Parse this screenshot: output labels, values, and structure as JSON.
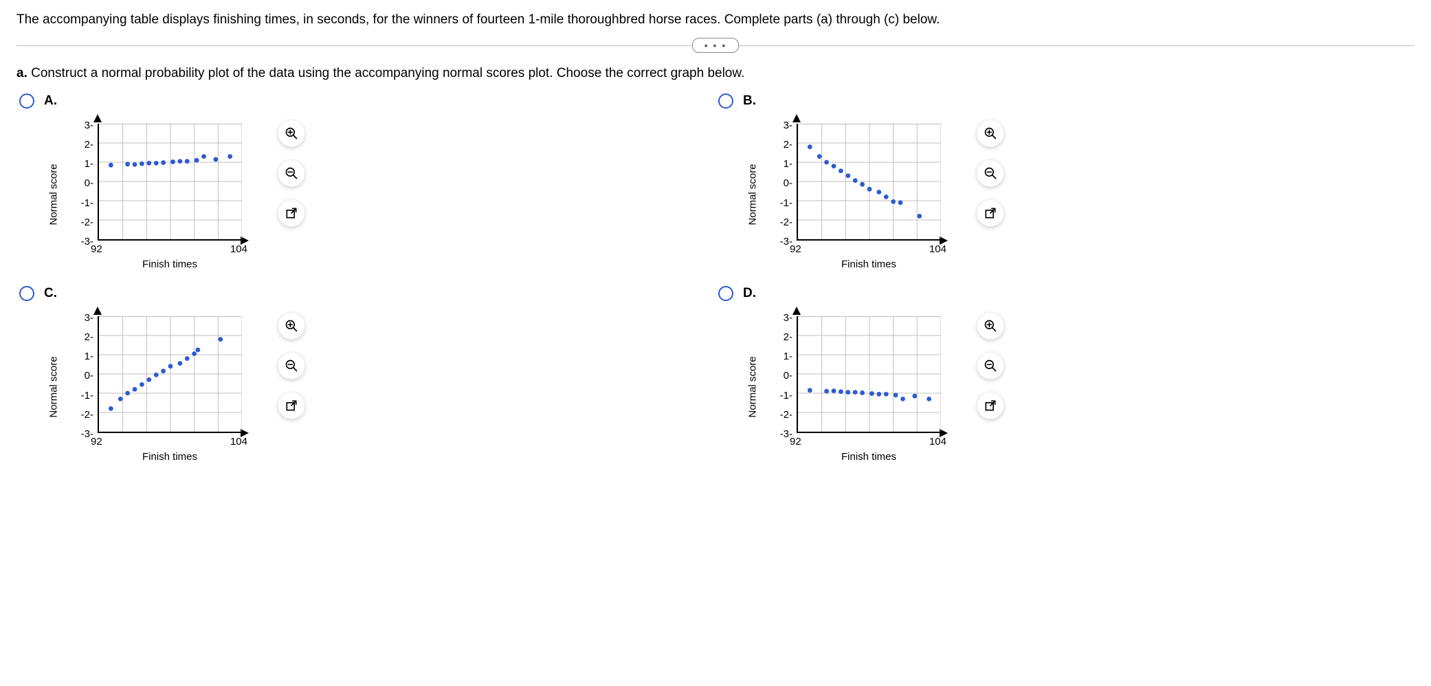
{
  "intro": "The accompanying table displays finishing times, in seconds, for the winners of fourteen 1-mile thoroughbred horse races. Complete parts (a) through (c) below.",
  "pill": "• • •",
  "partA": {
    "letter": "a.",
    "prompt": "Construct a normal probability plot of the data using the accompanying normal scores plot. Choose the correct graph below."
  },
  "axisCommon": {
    "ylabel": "Normal score",
    "xlabel": "Finish times",
    "yticks": [
      "3",
      "2",
      "1",
      "0",
      "-1",
      "-2",
      "-3"
    ],
    "xmin_label": "92",
    "xmax_label": "104",
    "xlim": [
      92,
      104
    ],
    "ylim": [
      -3,
      3
    ],
    "grid_color": "#bfbfbf",
    "axis_color": "#000000",
    "point_color": "#2f5bd0",
    "point_radius": 3.4,
    "background": "#ffffff",
    "label_fontsize": 15
  },
  "options": [
    {
      "id": "A",
      "label": "A.",
      "points": [
        {
          "x": 93.0,
          "y": 0.85
        },
        {
          "x": 94.4,
          "y": 0.9
        },
        {
          "x": 95.0,
          "y": 0.88
        },
        {
          "x": 95.6,
          "y": 0.92
        },
        {
          "x": 96.2,
          "y": 0.95
        },
        {
          "x": 96.8,
          "y": 0.95
        },
        {
          "x": 97.4,
          "y": 0.98
        },
        {
          "x": 98.2,
          "y": 1.02
        },
        {
          "x": 98.8,
          "y": 1.05
        },
        {
          "x": 99.4,
          "y": 1.05
        },
        {
          "x": 100.2,
          "y": 1.1
        },
        {
          "x": 100.8,
          "y": 1.3
        },
        {
          "x": 101.8,
          "y": 1.15
        },
        {
          "x": 103.0,
          "y": 1.3
        }
      ]
    },
    {
      "id": "B",
      "label": "B.",
      "points": [
        {
          "x": 93.0,
          "y": 1.8
        },
        {
          "x": 93.8,
          "y": 1.3
        },
        {
          "x": 94.4,
          "y": 1.0
        },
        {
          "x": 95.0,
          "y": 0.8
        },
        {
          "x": 95.6,
          "y": 0.55
        },
        {
          "x": 96.2,
          "y": 0.3
        },
        {
          "x": 96.8,
          "y": 0.05
        },
        {
          "x": 97.4,
          "y": -0.15
        },
        {
          "x": 98.0,
          "y": -0.4
        },
        {
          "x": 98.8,
          "y": -0.55
        },
        {
          "x": 99.4,
          "y": -0.8
        },
        {
          "x": 100.0,
          "y": -1.05
        },
        {
          "x": 100.6,
          "y": -1.1
        },
        {
          "x": 102.2,
          "y": -1.8
        }
      ]
    },
    {
      "id": "C",
      "label": "C.",
      "points": [
        {
          "x": 93.0,
          "y": -1.8
        },
        {
          "x": 93.8,
          "y": -1.3
        },
        {
          "x": 94.4,
          "y": -1.0
        },
        {
          "x": 95.0,
          "y": -0.8
        },
        {
          "x": 95.6,
          "y": -0.55
        },
        {
          "x": 96.2,
          "y": -0.3
        },
        {
          "x": 96.8,
          "y": -0.05
        },
        {
          "x": 97.4,
          "y": 0.15
        },
        {
          "x": 98.0,
          "y": 0.4
        },
        {
          "x": 98.8,
          "y": 0.55
        },
        {
          "x": 99.4,
          "y": 0.8
        },
        {
          "x": 100.0,
          "y": 1.05
        },
        {
          "x": 100.3,
          "y": 1.25
        },
        {
          "x": 102.2,
          "y": 1.8
        }
      ]
    },
    {
      "id": "D",
      "label": "D.",
      "points": [
        {
          "x": 93.0,
          "y": -0.85
        },
        {
          "x": 94.4,
          "y": -0.9
        },
        {
          "x": 95.0,
          "y": -0.88
        },
        {
          "x": 95.6,
          "y": -0.92
        },
        {
          "x": 96.2,
          "y": -0.95
        },
        {
          "x": 96.8,
          "y": -0.95
        },
        {
          "x": 97.4,
          "y": -0.98
        },
        {
          "x": 98.2,
          "y": -1.02
        },
        {
          "x": 98.8,
          "y": -1.05
        },
        {
          "x": 99.4,
          "y": -1.05
        },
        {
          "x": 100.2,
          "y": -1.1
        },
        {
          "x": 100.8,
          "y": -1.3
        },
        {
          "x": 101.8,
          "y": -1.15
        },
        {
          "x": 103.0,
          "y": -1.3
        }
      ]
    }
  ],
  "icons": {
    "zoom_in": "zoom-in-icon",
    "zoom_out": "zoom-out-icon",
    "popout": "popout-icon"
  }
}
